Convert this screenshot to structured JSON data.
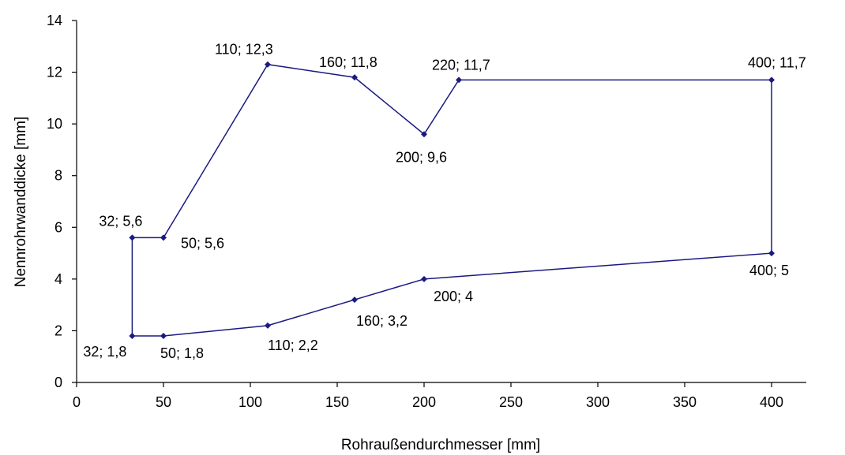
{
  "chart_data": {
    "type": "scatter",
    "xlabel": "Rohraußendurchmesser [mm]",
    "ylabel": "Nennrohrwanddicke [mm]",
    "xlim": [
      0,
      420
    ],
    "ylim": [
      0,
      14
    ],
    "x_ticks": [
      "0",
      "50",
      "100",
      "150",
      "200",
      "250",
      "300",
      "350",
      "400"
    ],
    "y_ticks": [
      "0",
      "2",
      "4",
      "6",
      "8",
      "10",
      "12",
      "14"
    ],
    "grid": false,
    "legend": "none",
    "colors": {
      "series": "#1a1a80"
    },
    "series": [
      {
        "points": [
          {
            "x": 32,
            "y": 1.8,
            "label": "32; 1,8"
          },
          {
            "x": 50,
            "y": 1.8,
            "label": "50; 1,8"
          },
          {
            "x": 110,
            "y": 2.2,
            "label": "110; 2,2"
          },
          {
            "x": 160,
            "y": 3.2,
            "label": "160; 3,2"
          },
          {
            "x": 200,
            "y": 4,
            "label": "200; 4"
          },
          {
            "x": 400,
            "y": 5,
            "label": "400; 5"
          },
          {
            "x": 400,
            "y": 11.7,
            "label": "400; 11,7"
          },
          {
            "x": 220,
            "y": 11.7,
            "label": "220; 11,7"
          },
          {
            "x": 200,
            "y": 9.6,
            "label": "200; 9,6"
          },
          {
            "x": 160,
            "y": 11.8,
            "label": "160; 11,8"
          },
          {
            "x": 110,
            "y": 12.3,
            "label": "110; 12,3"
          },
          {
            "x": 50,
            "y": 5.6,
            "label": "50; 5,6"
          },
          {
            "x": 32,
            "y": 5.6,
            "label": "32; 5,6"
          },
          {
            "x": 32,
            "y": 1.8,
            "label": ""
          }
        ]
      }
    ]
  }
}
